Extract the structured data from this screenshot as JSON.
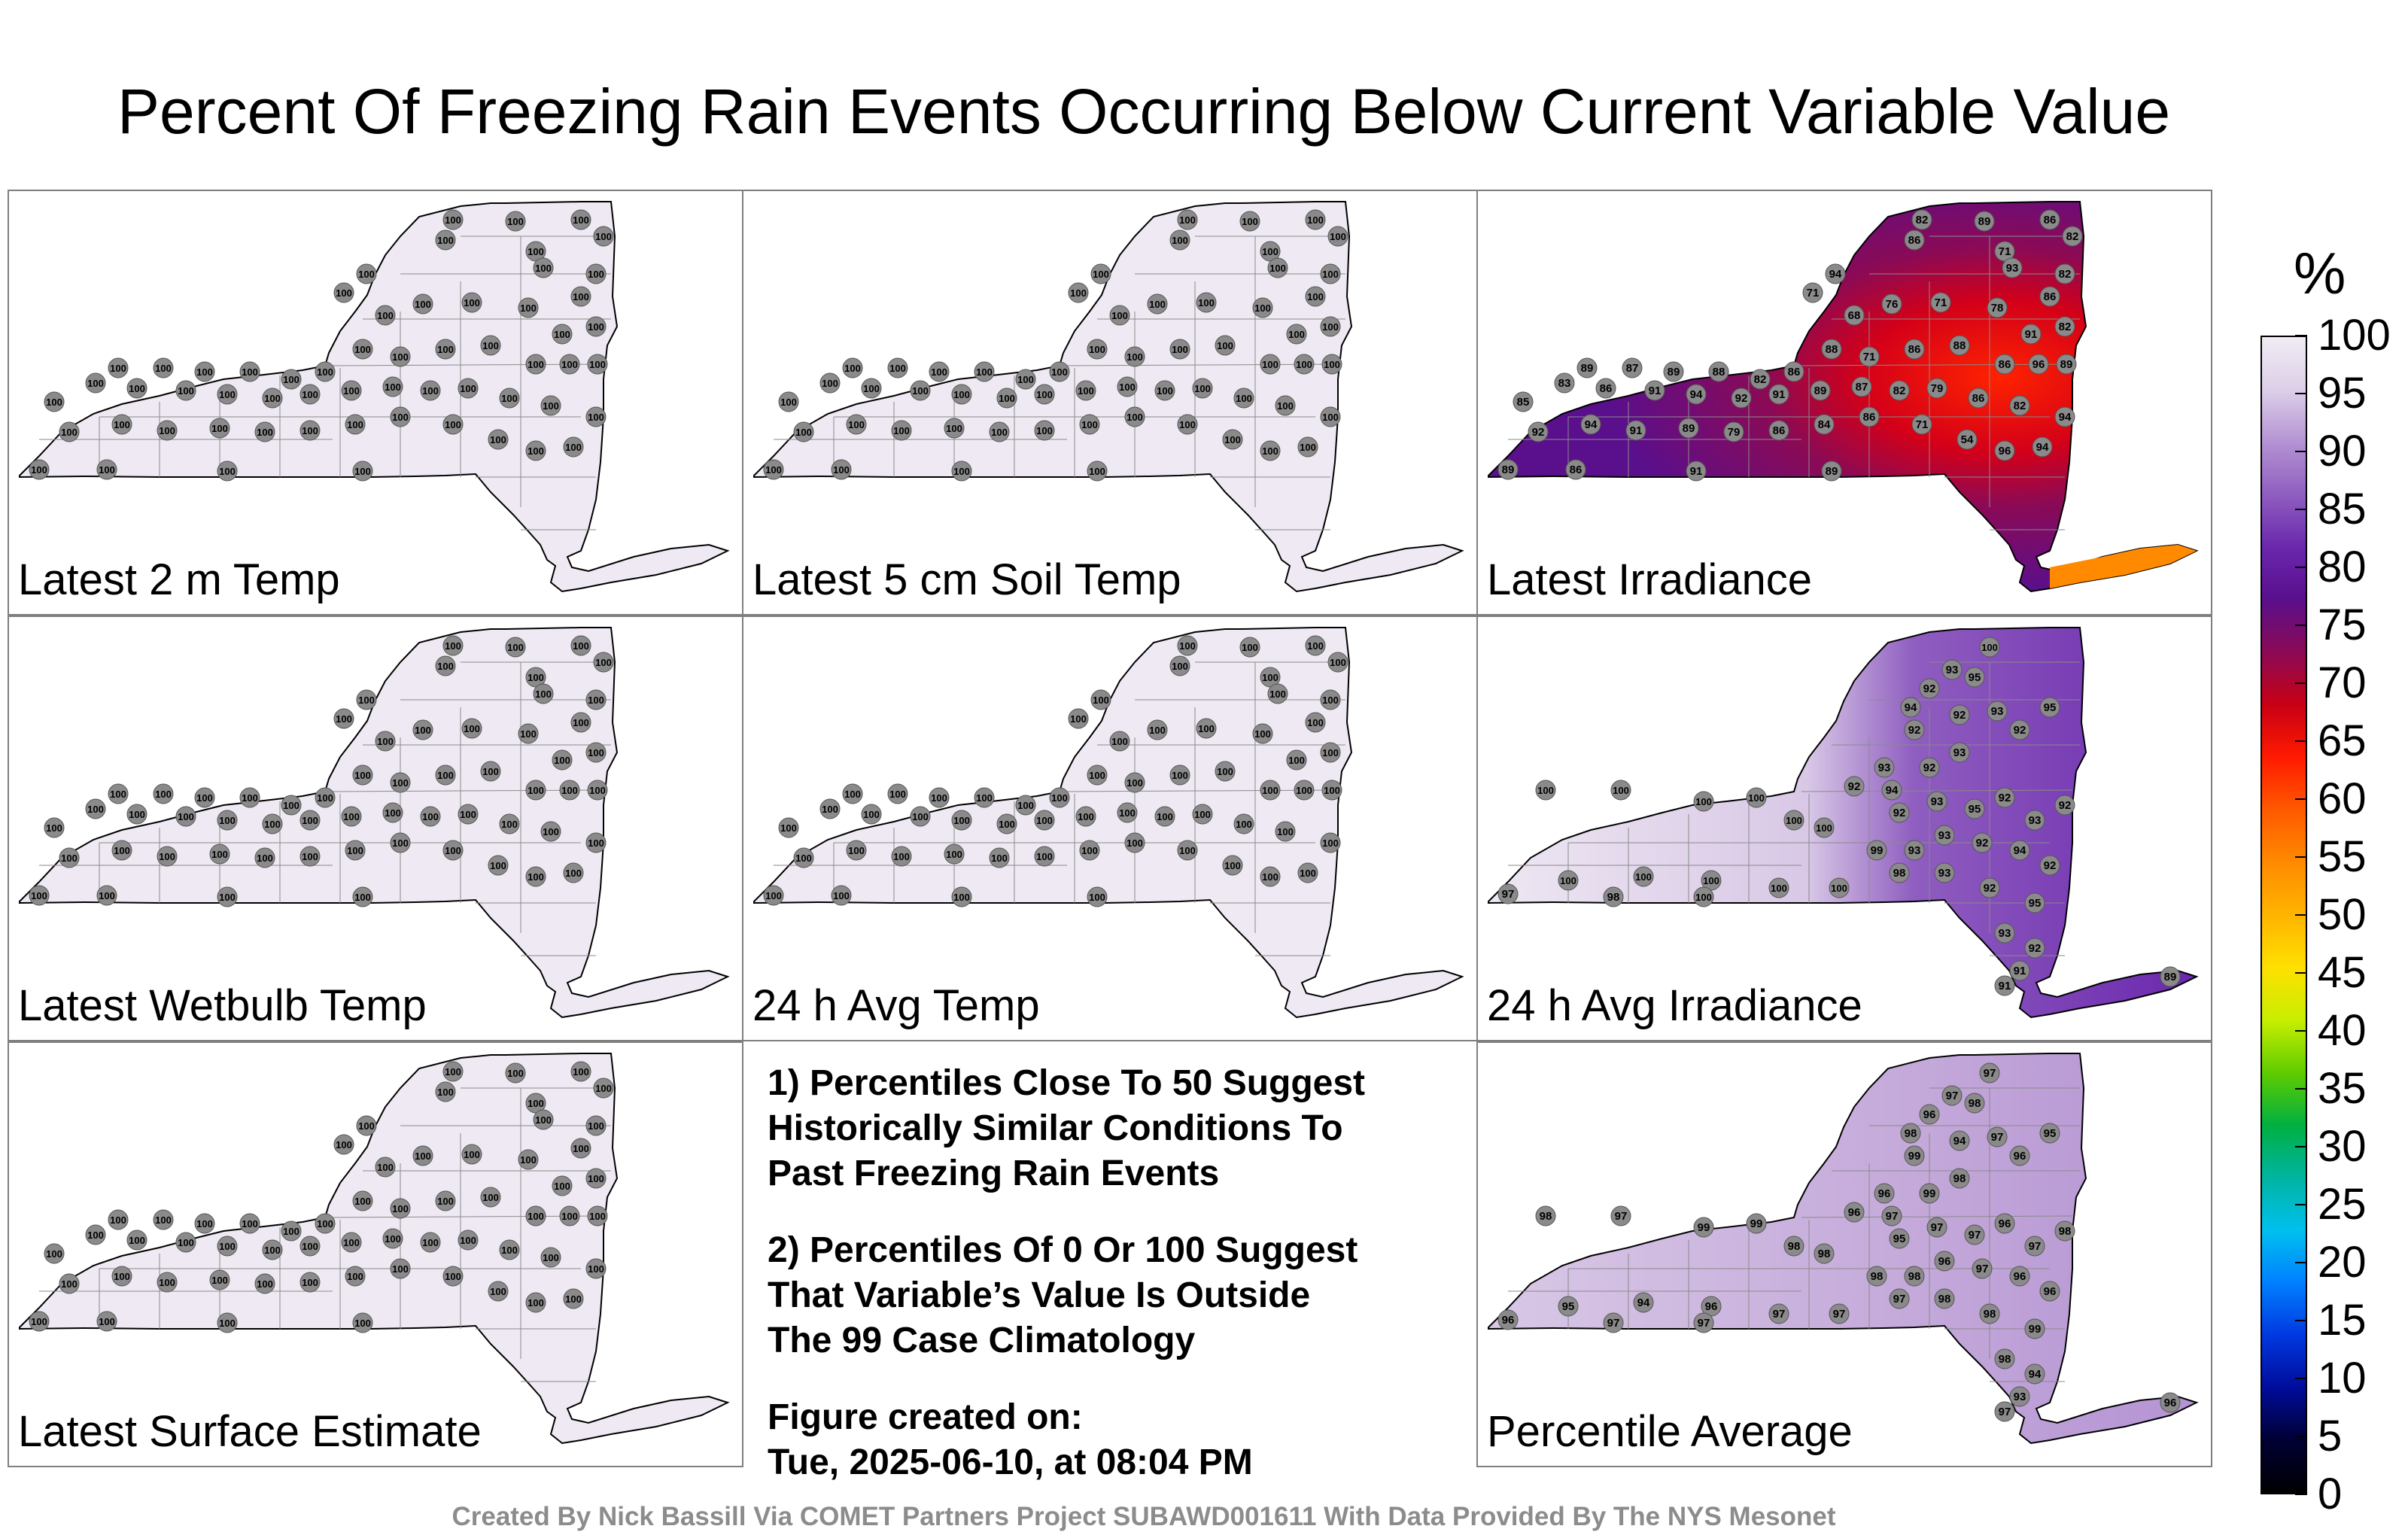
{
  "title": "Percent Of Freezing Rain Events Occurring Below Current Variable Value",
  "panels": [
    {
      "label": "Latest 2 m Temp",
      "fill": "#efe9f3",
      "values": "uniform-100"
    },
    {
      "label": "Latest 5 cm Soil Temp",
      "fill": "#efe9f3",
      "values": "uniform-100"
    },
    {
      "label": "Latest Irradiance",
      "fill": "#6a1fa8",
      "values": "irradiance"
    },
    {
      "label": "Latest Wetbulb Temp",
      "fill": "#efe9f3",
      "values": "uniform-100"
    },
    {
      "label": "24 h Avg Temp",
      "fill": "#efe9f3",
      "values": "uniform-100"
    },
    {
      "label": "24 h Avg Irradiance",
      "fill": "#eae3f0",
      "values": "avg-irradiance"
    },
    {
      "label": "Latest Surface Estimate",
      "fill": "#efe9f3",
      "values": "uniform-100"
    },
    {
      "label": "Percentile Average",
      "fill": "#c9b2dd",
      "values": "average"
    }
  ],
  "station_values": {
    "uniform-100": [
      100,
      100,
      100,
      100,
      100,
      100,
      100,
      100,
      100,
      100,
      100,
      100,
      100,
      100,
      100,
      100,
      100,
      100,
      100,
      100,
      100,
      100,
      100,
      100,
      100,
      100,
      100,
      100,
      100,
      100,
      100,
      100,
      100,
      100,
      100,
      100,
      100,
      100,
      100,
      100,
      100,
      100,
      100,
      100,
      100,
      100,
      100,
      100,
      100,
      100,
      100,
      100,
      100,
      100,
      100,
      100,
      100,
      100,
      100,
      100
    ],
    "irradiance": [
      82,
      89,
      86,
      82,
      94,
      86,
      71,
      93,
      82,
      86,
      71,
      68,
      76,
      71,
      78,
      91,
      82,
      88,
      71,
      86,
      88,
      86,
      96,
      89,
      89,
      87,
      89,
      88,
      82,
      86,
      85,
      83,
      86,
      91,
      94,
      92,
      91,
      89,
      87,
      82,
      79,
      86,
      82,
      94,
      92,
      94,
      91,
      89,
      79,
      86,
      84,
      86,
      71,
      54,
      96,
      94,
      89,
      86,
      91,
      89
    ],
    "avg-irradiance": [
      100,
      95,
      93,
      92,
      94,
      92,
      93,
      92,
      95,
      93,
      92,
      94,
      93,
      95,
      92,
      93,
      92,
      93,
      92,
      94,
      92,
      93,
      92,
      95,
      93,
      92,
      93,
      92,
      92,
      93,
      100,
      100,
      100,
      100,
      100,
      100,
      99,
      98,
      100,
      100,
      100,
      100,
      100,
      97,
      98,
      100,
      92,
      91,
      91,
      89
    ],
    "average": [
      97,
      98,
      97,
      96,
      98,
      94,
      97,
      96,
      95,
      98,
      99,
      97,
      97,
      97,
      96,
      97,
      98,
      96,
      97,
      96,
      96,
      98,
      98,
      99,
      98,
      99,
      96,
      96,
      95,
      98,
      98,
      97,
      99,
      99,
      98,
      98,
      98,
      97,
      97,
      97,
      96,
      94,
      95,
      96,
      97,
      97,
      94,
      93,
      97,
      96
    ]
  },
  "colorbar": {
    "unit": "%",
    "ticks": [
      "100",
      "95",
      "90",
      "85",
      "80",
      "75",
      "70",
      "65",
      "60",
      "55",
      "50",
      "45",
      "40",
      "35",
      "30",
      "25",
      "20",
      "15",
      "10",
      "5",
      "0"
    ],
    "colors": [
      "#f1ecf5",
      "#ddcfe8",
      "#b493d3",
      "#8f5ec0",
      "#6a27ad",
      "#5a0f8c",
      "#8b0a55",
      "#c80014",
      "#ff1a00",
      "#ff5a00",
      "#ff8a00",
      "#ffb400",
      "#ffe000",
      "#c8ee00",
      "#5fcc00",
      "#00b040",
      "#00b4a0",
      "#00c0ee",
      "#0080ff",
      "#0038e0",
      "#000c9a",
      "#000033",
      "#000000"
    ]
  },
  "notes": [
    "1) Percentiles Close To 50 Suggest\nHistorically Similar Conditions To\nPast Freezing Rain Events",
    "2) Percentiles Of 0 Or 100 Suggest\nThat Variable’s Value Is Outside\nThe 99 Case Climatology",
    "Figure created on:\nTue, 2025-06-10, at 08:04 PM"
  ],
  "credit": "Created By Nick Bassill Via COMET Partners Project SUBAWD001611 With Data Provided By The NYS Mesonet"
}
